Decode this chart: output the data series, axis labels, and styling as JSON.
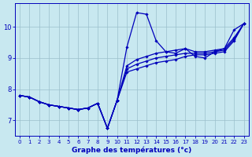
{
  "xlabel": "Graphe des températures (°c)",
  "xlim": [
    -0.5,
    23.5
  ],
  "ylim": [
    6.5,
    10.75
  ],
  "yticks": [
    7,
    8,
    9,
    10
  ],
  "xticks": [
    0,
    1,
    2,
    3,
    4,
    5,
    6,
    7,
    8,
    9,
    10,
    11,
    12,
    13,
    14,
    15,
    16,
    17,
    18,
    19,
    20,
    21,
    22,
    23
  ],
  "background_color": "#c8e8f0",
  "grid_color": "#9bbfcc",
  "line_color": "#0000bb",
  "hours": [
    0,
    1,
    2,
    3,
    4,
    5,
    6,
    7,
    8,
    9,
    10,
    11,
    12,
    13,
    14,
    15,
    16,
    17,
    18,
    19,
    20,
    21,
    22,
    23
  ],
  "curve_jagged": [
    7.8,
    7.75,
    7.6,
    7.5,
    7.45,
    7.4,
    7.35,
    7.4,
    7.55,
    6.75,
    7.65,
    9.35,
    10.45,
    10.4,
    9.55,
    9.2,
    9.15,
    9.3,
    9.05,
    9.0,
    9.2,
    9.3,
    9.9,
    10.1
  ],
  "curve_low": [
    7.8,
    7.75,
    7.6,
    7.5,
    7.45,
    7.4,
    7.35,
    7.4,
    7.55,
    6.75,
    7.65,
    8.55,
    8.65,
    8.75,
    8.85,
    8.9,
    8.95,
    9.05,
    9.1,
    9.1,
    9.15,
    9.2,
    9.55,
    10.1
  ],
  "curve_mid": [
    7.8,
    7.75,
    7.6,
    7.5,
    7.45,
    7.4,
    7.35,
    7.4,
    7.55,
    6.75,
    7.65,
    8.65,
    8.8,
    8.9,
    9.0,
    9.05,
    9.1,
    9.15,
    9.15,
    9.15,
    9.2,
    9.25,
    9.6,
    10.1
  ],
  "curve_high": [
    7.8,
    7.75,
    7.6,
    7.5,
    7.45,
    7.4,
    7.35,
    7.4,
    7.55,
    6.75,
    7.65,
    8.75,
    8.95,
    9.05,
    9.15,
    9.2,
    9.25,
    9.3,
    9.2,
    9.2,
    9.25,
    9.3,
    9.65,
    10.1
  ]
}
